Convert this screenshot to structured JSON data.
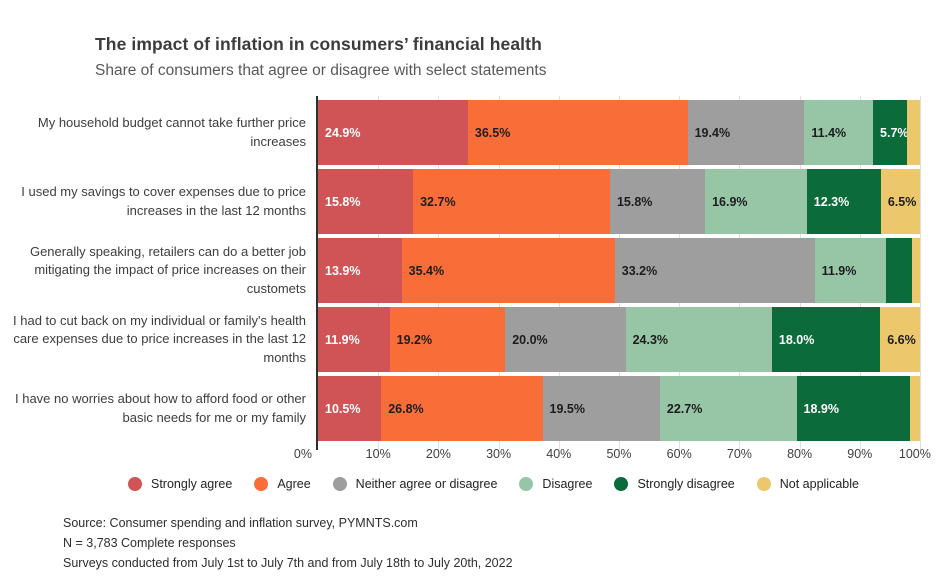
{
  "chart_data": {
    "type": "bar",
    "stacked": true,
    "orientation": "horizontal",
    "title": "The impact of inflation in consumers’ financial health",
    "subtitle": "Share of consumers that agree or disagree with select statements",
    "x_axis": {
      "min": 0,
      "max": 100,
      "unit": "%",
      "grid": true,
      "ticks": [
        "0%",
        "10%",
        "20%",
        "30%",
        "40%",
        "50%",
        "60%",
        "70%",
        "80%",
        "90%",
        "100%"
      ]
    },
    "series": [
      {
        "name": "Strongly agree",
        "color": "#d05456",
        "label_text": "#ffffff"
      },
      {
        "name": "Agree",
        "color": "#f96e38",
        "label_text": "#1d1d1d"
      },
      {
        "name": "Neither agree or disagree",
        "color": "#9e9e9e",
        "label_text": "#1d1d1d"
      },
      {
        "name": "Disagree",
        "color": "#97c6a7",
        "label_text": "#1d1d1d"
      },
      {
        "name": "Strongly disagree",
        "color": "#0b6b3b",
        "label_text": "#ffffff"
      },
      {
        "name": "Not applicable",
        "color": "#ecc76c",
        "label_text": "#1d1d1d"
      }
    ],
    "rows": [
      {
        "category": "My household budget cannot take further price increases",
        "values": [
          24.9,
          36.5,
          19.4,
          11.4,
          5.7,
          2.1
        ],
        "labels": [
          "24.9%",
          "36.5%",
          "19.4%",
          "11.4%",
          "5.7%",
          ""
        ]
      },
      {
        "category": "I used my savings to cover expenses due to price increases in the last 12 months",
        "values": [
          15.8,
          32.7,
          15.8,
          16.9,
          12.3,
          6.5
        ],
        "labels": [
          "15.8%",
          "32.7%",
          "15.8%",
          "16.9%",
          "12.3%",
          "6.5%"
        ]
      },
      {
        "category": "Generally speaking, retailers can do a better job mitigating the impact of price increases on their customets",
        "values": [
          13.9,
          35.4,
          33.2,
          11.9,
          4.2,
          1.4
        ],
        "labels": [
          "13.9%",
          "35.4%",
          "33.2%",
          "11.9%",
          "",
          ""
        ]
      },
      {
        "category": "I had to cut back on my individual or family's health care expenses due to price increases in the last 12 months",
        "values": [
          11.9,
          19.2,
          20.0,
          24.3,
          18.0,
          6.6
        ],
        "labels": [
          "11.9%",
          "19.2%",
          "20.0%",
          "24.3%",
          "18.0%",
          "6.6%"
        ]
      },
      {
        "category": "I have no worries about how to afford food or other basic needs for me or my family",
        "values": [
          10.5,
          26.8,
          19.5,
          22.7,
          18.9,
          1.6
        ],
        "labels": [
          "10.5%",
          "26.8%",
          "19.5%",
          "22.7%",
          "18.9%",
          ""
        ]
      }
    ],
    "legend_position": "bottom"
  },
  "footer": {
    "lines": [
      "Source: Consumer spending and inflation survey, PYMNTS.com",
      "N = 3,783 Complete responses",
      "Surveys conducted from July 1st to July 7th and from July 18th to July 20th, 2022"
    ]
  }
}
